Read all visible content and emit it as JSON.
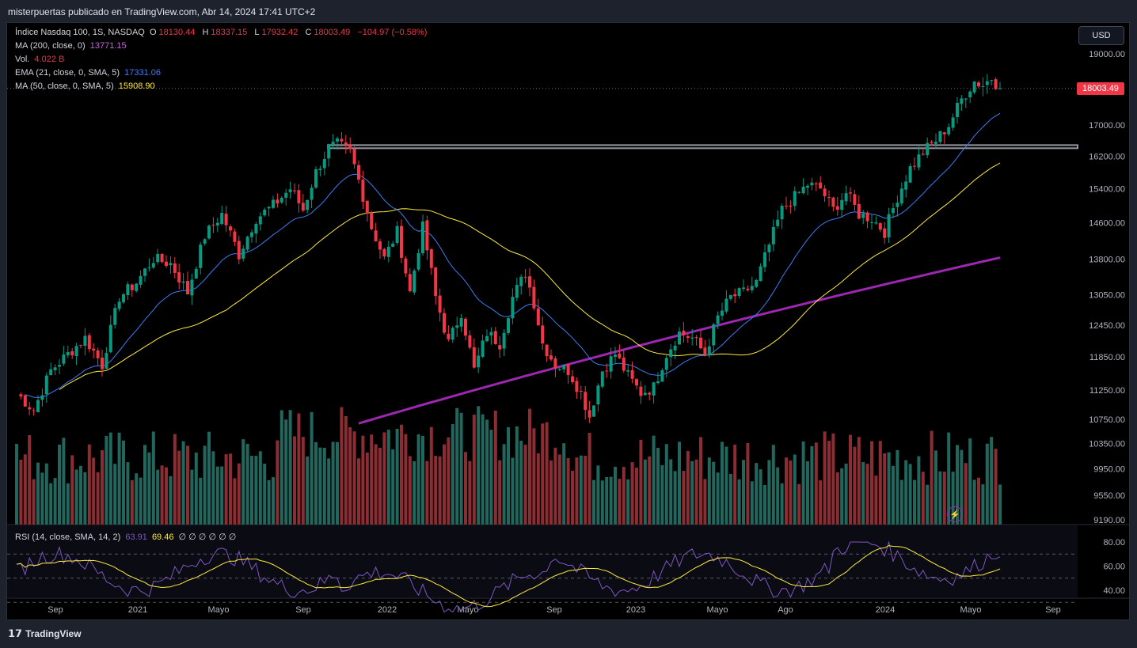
{
  "header": {
    "publisher": "misterpuertas publicado en TradingView.com, Abr 14, 2024 17:41 UTC+2"
  },
  "legend": {
    "symbol": "Índice Nasdaq 100, 1S, NASDAQ",
    "o_label": "O",
    "o_value": "18130.44",
    "h_label": "H",
    "h_value": "18337.15",
    "l_label": "L",
    "l_value": "17932.42",
    "c_label": "C",
    "c_value": "18003.49",
    "change": "−104.97 (−0.58%)",
    "ma200_label": "MA (200, close, 0)",
    "ma200_value": "13771.15",
    "vol_label": "Vol.",
    "vol_value": "4.022 B",
    "ema21_label": "EMA (21, close, 0, SMA, 5)",
    "ema21_value": "17331.06",
    "ma50_label": "MA (50, close, 0, SMA, 5)",
    "ma50_value": "15908.90"
  },
  "rsi_legend": {
    "label": "RSI (14, close, SMA, 14, 2)",
    "rsi_value": "63.91",
    "sma_value": "69.46",
    "placeholders": "∅ ∅ ∅ ∅ ∅ ∅"
  },
  "currency_button": "USD",
  "last_price": "18003.49",
  "footer": {
    "brand": "TradingView"
  },
  "colors": {
    "up": "#089981",
    "down": "#f23645",
    "ema21": "#3f7cf2",
    "ma50": "#ffeb3b",
    "ma200": "#9c27b0",
    "rsi": "#7e57c2",
    "rsi_sma": "#ffeb3b"
  },
  "chart_data": {
    "type": "candlestick",
    "timeframe": "1W",
    "price_axis_ticks": [
      19000,
      17000,
      16200,
      15400,
      14600,
      13800,
      13050,
      12450,
      11850,
      11250,
      10750,
      10350,
      9950,
      9550,
      9190
    ],
    "price_axis_labels": [
      "19000.00",
      "17000.00",
      "16200.00",
      "15400.00",
      "14600.00",
      "13800.00",
      "13050.00",
      "12450.00",
      "11850.00",
      "11250.00",
      "10750.00",
      "10350.00",
      "9950.00",
      "9550.00",
      "9190.00"
    ],
    "rsi_axis_labels": [
      "80.00",
      "60.00",
      "40.00"
    ],
    "rsi_axis_ticks": [
      80,
      60,
      40
    ],
    "time_axis_labels": [
      "Sep",
      "2021",
      "Mayo",
      "Sep",
      "2022",
      "Mayo",
      "Sep",
      "2023",
      "Mayo",
      "Ago",
      "2024",
      "Mayo",
      "Sep"
    ],
    "resistance_level": [
      16400,
      16480
    ],
    "anchors": [
      [
        0,
        11200
      ],
      [
        4,
        10900
      ],
      [
        8,
        11600
      ],
      [
        12,
        11900
      ],
      [
        16,
        12200
      ],
      [
        20,
        11700
      ],
      [
        24,
        13000
      ],
      [
        28,
        13300
      ],
      [
        32,
        13800
      ],
      [
        36,
        13700
      ],
      [
        40,
        13100
      ],
      [
        44,
        14300
      ],
      [
        48,
        14800
      ],
      [
        52,
        13900
      ],
      [
        56,
        14700
      ],
      [
        60,
        15000
      ],
      [
        64,
        15400
      ],
      [
        67,
        14900
      ],
      [
        70,
        15800
      ],
      [
        73,
        16400
      ],
      [
        75,
        16500
      ],
      [
        78,
        16300
      ],
      [
        80,
        15600
      ],
      [
        83,
        14500
      ],
      [
        86,
        13800
      ],
      [
        89,
        14400
      ],
      [
        92,
        13100
      ],
      [
        95,
        14500
      ],
      [
        98,
        13000
      ],
      [
        101,
        12100
      ],
      [
        104,
        12700
      ],
      [
        107,
        11600
      ],
      [
        110,
        12300
      ],
      [
        113,
        12100
      ],
      [
        116,
        13000
      ],
      [
        119,
        13500
      ],
      [
        121,
        12900
      ],
      [
        123,
        12100
      ],
      [
        126,
        11700
      ],
      [
        129,
        11600
      ],
      [
        132,
        11200
      ],
      [
        134,
        10800
      ],
      [
        137,
        11600
      ],
      [
        140,
        11900
      ],
      [
        143,
        11500
      ],
      [
        146,
        11200
      ],
      [
        149,
        11300
      ],
      [
        152,
        11900
      ],
      [
        155,
        12300
      ],
      [
        158,
        12200
      ],
      [
        161,
        11900
      ],
      [
        164,
        12600
      ],
      [
        167,
        13000
      ],
      [
        170,
        13100
      ],
      [
        173,
        13300
      ],
      [
        176,
        14100
      ],
      [
        179,
        14900
      ],
      [
        182,
        15200
      ],
      [
        185,
        15500
      ],
      [
        188,
        15400
      ],
      [
        191,
        14900
      ],
      [
        194,
        15300
      ],
      [
        197,
        14800
      ],
      [
        200,
        14700
      ],
      [
        203,
        14400
      ],
      [
        206,
        15200
      ],
      [
        209,
        15900
      ],
      [
        212,
        16300
      ],
      [
        215,
        16600
      ],
      [
        218,
        17000
      ],
      [
        221,
        17700
      ],
      [
        224,
        18200
      ],
      [
        226,
        18100
      ],
      [
        228,
        18300
      ],
      [
        230,
        18003
      ]
    ]
  }
}
